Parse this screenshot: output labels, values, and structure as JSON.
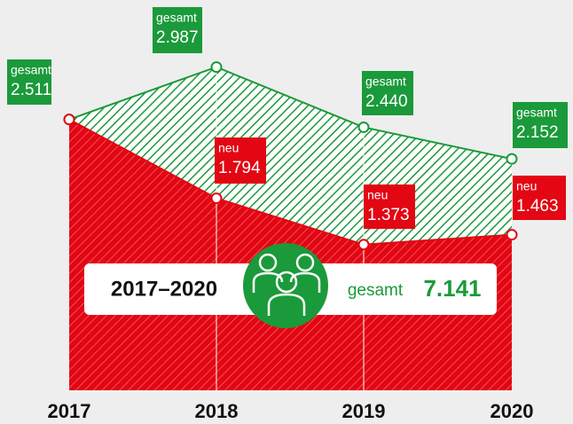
{
  "chart_data": {
    "type": "area",
    "categories": [
      "2017",
      "2018",
      "2019",
      "2020"
    ],
    "series": [
      {
        "name": "gesamt",
        "color": "#1a9a3a",
        "values": [
          2511,
          2987,
          2440,
          2152
        ],
        "value_labels": [
          "2.511",
          "2.987",
          "2.440",
          "2.152"
        ]
      },
      {
        "name": "neu",
        "color": "#e30613",
        "values": [
          2511,
          1794,
          1373,
          1463
        ],
        "value_labels": [
          null,
          "1.794",
          "1.373",
          "1.463"
        ]
      }
    ],
    "ylim": [
      0,
      3000
    ],
    "total": {
      "label": "2017–2020",
      "value": 7141,
      "value_label": "7.141"
    }
  }
}
